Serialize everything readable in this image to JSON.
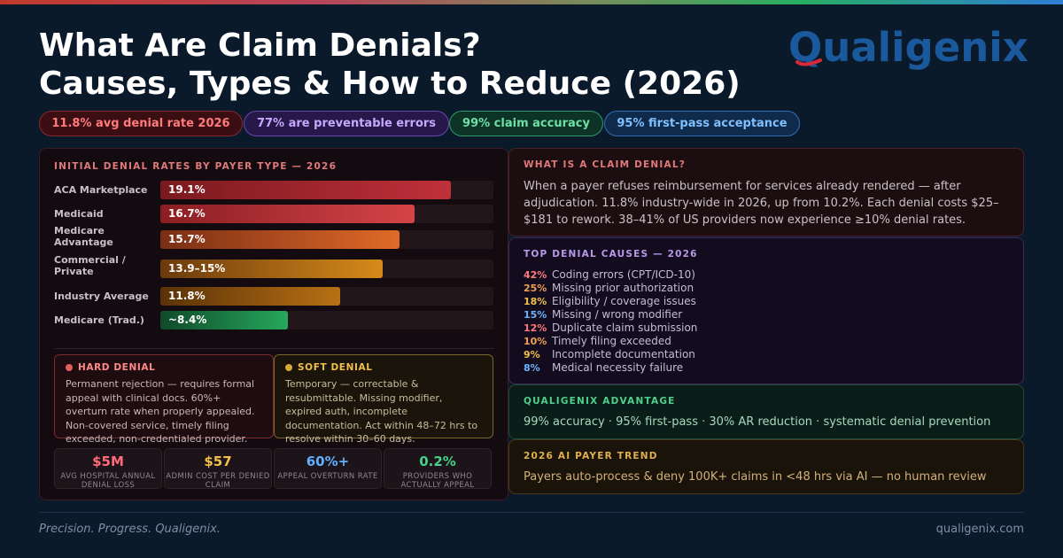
{
  "header": {
    "title_line1": "What Are Claim Denials?",
    "title_line2": "Causes, Types & How to Reduce (2026)",
    "logo_text": "Qualigenix"
  },
  "pills": [
    {
      "label": "11.8% avg denial rate 2026"
    },
    {
      "label": "77% are preventable errors"
    },
    {
      "label": "99% claim accuracy"
    },
    {
      "label": "95% first-pass acceptance"
    }
  ],
  "payer_chart": {
    "title": "INITIAL DENIAL RATES BY PAYER TYPE — 2026",
    "max_value": 21.9,
    "rows": [
      {
        "label": "ACA Marketplace",
        "value_label": "19.1%",
        "value": 19.1,
        "color_from": "#7a1a1e",
        "color_to": "#c0303a"
      },
      {
        "label": "Medicaid",
        "value_label": "16.7%",
        "value": 16.7,
        "color_from": "#8a1e22",
        "color_to": "#d44448"
      },
      {
        "label": "Medicare Advantage",
        "value_label": "15.7%",
        "value": 15.7,
        "color_from": "#7a2e14",
        "color_to": "#e06a28"
      },
      {
        "label": "Commercial / Private",
        "value_label": "13.9–15%",
        "value": 14.6,
        "color_from": "#6a3a0c",
        "color_to": "#d68a1a"
      },
      {
        "label": "Industry Average",
        "value_label": "11.8%",
        "value": 11.8,
        "color_from": "#5a3208",
        "color_to": "#b87014"
      },
      {
        "label": "Medicare (Trad.)",
        "value_label": "~8.4%",
        "value": 8.4,
        "color_from": "#0f4a2a",
        "color_to": "#27a85c"
      }
    ]
  },
  "hard_denial": {
    "title": "HARD DENIAL",
    "text": "Permanent rejection — requires formal appeal with clinical docs. 60%+ overturn rate when properly appealed. Non-covered service, timely filing exceeded, non-credentialed provider."
  },
  "soft_denial": {
    "title": "SOFT DENIAL",
    "text": "Temporary — correctable & resubmittable. Missing modifier, expired auth, incomplete documentation. Act within 48–72 hrs to resolve within 30–60 days."
  },
  "stats": [
    {
      "value": "$5M",
      "label": "AVG HOSPITAL ANNUAL DENIAL LOSS",
      "color": "#ff6b7a"
    },
    {
      "value": "$57",
      "label": "ADMIN COST PER DENIED CLAIM",
      "color": "#f2c14a"
    },
    {
      "value": "60%+",
      "label": "APPEAL OVERTURN RATE",
      "color": "#5fb0ff"
    },
    {
      "value": "0.2%",
      "label": "PROVIDERS WHO ACTUALLY APPEAL",
      "color": "#46d08a"
    }
  ],
  "what_is": {
    "title": "WHAT IS A CLAIM DENIAL?",
    "text": "When a payer refuses reimbursement for services already rendered — after adjudication. 11.8% industry-wide in 2026, up from 10.2%. Each denial costs $25–$181 to rework. 38–41% of US providers now experience ≥10% denial rates."
  },
  "causes": {
    "title": "TOP DENIAL CAUSES — 2026",
    "items": [
      {
        "pct": "42%",
        "label": "Coding errors (CPT/ICD-10)",
        "color": "#ff7b7b"
      },
      {
        "pct": "25%",
        "label": "Missing prior authorization",
        "color": "#f0a050"
      },
      {
        "pct": "18%",
        "label": "Eligibility / coverage issues",
        "color": "#f0c04a"
      },
      {
        "pct": "15%",
        "label": "Missing / wrong modifier",
        "color": "#6fb4ff"
      },
      {
        "pct": "12%",
        "label": "Duplicate claim submission",
        "color": "#ff7b7b"
      },
      {
        "pct": "10%",
        "label": "Timely filing exceeded",
        "color": "#f0a050"
      },
      {
        "pct": "9%",
        "label": "Incomplete documentation",
        "color": "#f0c04a"
      },
      {
        "pct": "8%",
        "label": "Medical necessity failure",
        "color": "#6fb4ff"
      }
    ]
  },
  "advantage": {
    "title": "QUALIGENIX ADVANTAGE",
    "text": "99% accuracy · 95% first-pass · 30% AR reduction · systematic denial prevention"
  },
  "ai_trend": {
    "title": "2026 AI PAYER TREND",
    "text": "Payers auto-process & deny 100K+ claims in <48 hrs via AI — no human review"
  },
  "footer": {
    "tagline": "Precision. Progress. Qualigenix.",
    "url": "qualigenix.com"
  }
}
